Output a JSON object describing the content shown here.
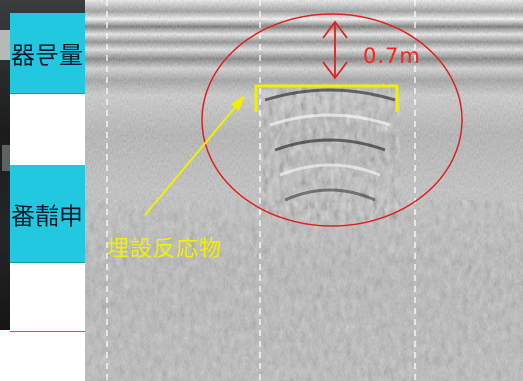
{
  "left_panel": {
    "top_label": "量号器",
    "middle_label": "申請番"
  },
  "radar": {
    "depth_label": "0.7m",
    "object_label": "埋設反応物"
  },
  "colors": {
    "cyan_panel": "#22c8e0",
    "ellipse": "#e02020",
    "bracket": "#f0f000",
    "depth_text": "#ff2020",
    "object_text": "#f0f000"
  }
}
